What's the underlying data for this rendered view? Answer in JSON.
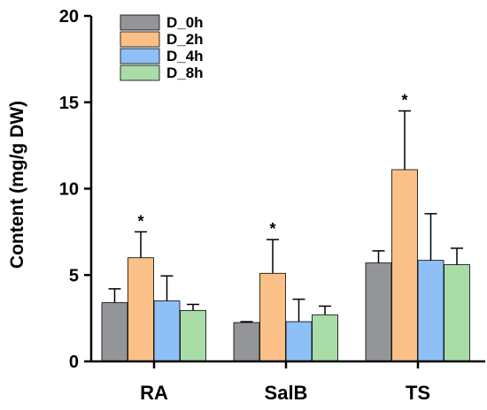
{
  "chart_data": {
    "type": "bar",
    "title": "",
    "xlabel": "",
    "ylabel": "Content (mg/g DW)",
    "ylim": [
      0,
      20
    ],
    "yticks": [
      0,
      5,
      10,
      15,
      20
    ],
    "categories": [
      "RA",
      "SalB",
      "TS"
    ],
    "legend_position": "top-left",
    "series": [
      {
        "name": "D_0h",
        "color": "#939598",
        "values": [
          3.4,
          2.25,
          5.7
        ],
        "errors": [
          0.8,
          0.05,
          0.7
        ]
      },
      {
        "name": "D_2h",
        "color": "#fbc088",
        "values": [
          6.0,
          5.1,
          11.1
        ],
        "errors": [
          1.5,
          1.95,
          3.4
        ]
      },
      {
        "name": "D_4h",
        "color": "#8fbff7",
        "values": [
          3.5,
          2.3,
          5.85
        ],
        "errors": [
          1.45,
          1.3,
          2.7
        ]
      },
      {
        "name": "D_8h",
        "color": "#a9dca7",
        "values": [
          2.95,
          2.7,
          5.6
        ],
        "errors": [
          0.35,
          0.5,
          0.95
        ]
      }
    ],
    "significance": [
      {
        "category": "RA",
        "series": "D_2h",
        "label": "*"
      },
      {
        "category": "SalB",
        "series": "D_2h",
        "label": "*"
      },
      {
        "category": "TS",
        "series": "D_2h",
        "label": "*"
      }
    ]
  }
}
